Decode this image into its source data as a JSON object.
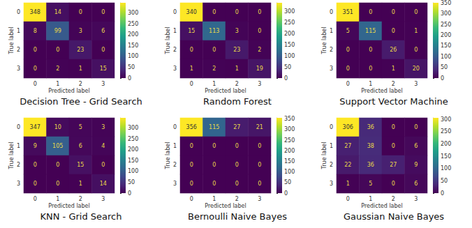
{
  "chart_data": [
    {
      "type": "heatmap",
      "title": "Decision Tree - Grid Search",
      "x_label": "Predicted label",
      "y_label": "True label",
      "x": [
        0,
        1,
        2,
        3
      ],
      "y": [
        0,
        1,
        2,
        3
      ],
      "cells": [
        [
          348,
          14,
          0,
          0
        ],
        [
          8,
          99,
          3,
          6
        ],
        [
          0,
          0,
          23,
          0
        ],
        [
          0,
          2,
          1,
          15
        ]
      ],
      "colorbar_range": [
        0,
        348
      ],
      "colorbar_ticks": [
        0,
        50,
        100,
        150,
        200,
        250,
        300
      ],
      "data_labels": true
    },
    {
      "type": "heatmap",
      "title": "Random Forest",
      "x_label": "Predicted label",
      "y_label": "True label",
      "x": [
        0,
        1,
        2,
        3
      ],
      "y": [
        0,
        1,
        2,
        3
      ],
      "cells": [
        [
          340,
          0,
          0,
          0
        ],
        [
          15,
          113,
          3,
          0
        ],
        [
          0,
          0,
          23,
          2
        ],
        [
          1,
          2,
          1,
          19
        ]
      ],
      "colorbar_range": [
        0,
        340
      ],
      "colorbar_ticks": [
        0,
        50,
        100,
        150,
        200,
        250,
        300
      ],
      "data_labels": true
    },
    {
      "type": "heatmap",
      "title": "Support Vector Machine",
      "x_label": "Predicted label",
      "y_label": "True label",
      "x": [
        0,
        1,
        2,
        3
      ],
      "y": [
        0,
        1,
        2,
        3
      ],
      "cells": [
        [
          351,
          0,
          0,
          0
        ],
        [
          5,
          115,
          0,
          1
        ],
        [
          0,
          0,
          26,
          0
        ],
        [
          0,
          0,
          1,
          20
        ]
      ],
      "colorbar_range": [
        0,
        351
      ],
      "colorbar_ticks": [
        0,
        50,
        100,
        150,
        200,
        250,
        300,
        350
      ],
      "data_labels": true
    },
    {
      "type": "heatmap",
      "title": "KNN - Grid Search",
      "x_label": "Predicted label",
      "y_label": "True label",
      "x": [
        0,
        1,
        2,
        3
      ],
      "y": [
        0,
        1,
        2,
        3
      ],
      "cells": [
        [
          347,
          10,
          5,
          3
        ],
        [
          9,
          105,
          6,
          4
        ],
        [
          0,
          0,
          15,
          0
        ],
        [
          0,
          0,
          1,
          14
        ]
      ],
      "colorbar_range": [
        0,
        347
      ],
      "colorbar_ticks": [
        0,
        50,
        100,
        150,
        200,
        250,
        300
      ],
      "data_labels": true
    },
    {
      "type": "heatmap",
      "title": "Bernoulli Naive Bayes",
      "x_label": "Predicted label",
      "y_label": "True label",
      "x": [
        0,
        1,
        2,
        3
      ],
      "y": [
        0,
        1,
        2,
        3
      ],
      "cells": [
        [
          356,
          115,
          27,
          21
        ],
        [
          0,
          0,
          0,
          0
        ],
        [
          0,
          0,
          0,
          0
        ],
        [
          0,
          0,
          0,
          0
        ]
      ],
      "colorbar_range": [
        0,
        356
      ],
      "colorbar_ticks": [
        0,
        50,
        100,
        150,
        200,
        250,
        300,
        350
      ],
      "data_labels": true
    },
    {
      "type": "heatmap",
      "title": "Gaussian Naive Bayes",
      "x_label": "Predicted label",
      "y_label": "True label",
      "x": [
        0,
        1,
        2,
        3
      ],
      "y": [
        0,
        1,
        2,
        3
      ],
      "cells": [
        [
          306,
          36,
          0,
          0
        ],
        [
          27,
          38,
          0,
          6
        ],
        [
          22,
          36,
          27,
          9
        ],
        [
          1,
          5,
          0,
          6
        ]
      ],
      "colorbar_range": [
        0,
        306
      ],
      "colorbar_ticks": [
        0,
        50,
        100,
        150,
        200,
        250,
        300
      ],
      "data_labels": true
    }
  ]
}
